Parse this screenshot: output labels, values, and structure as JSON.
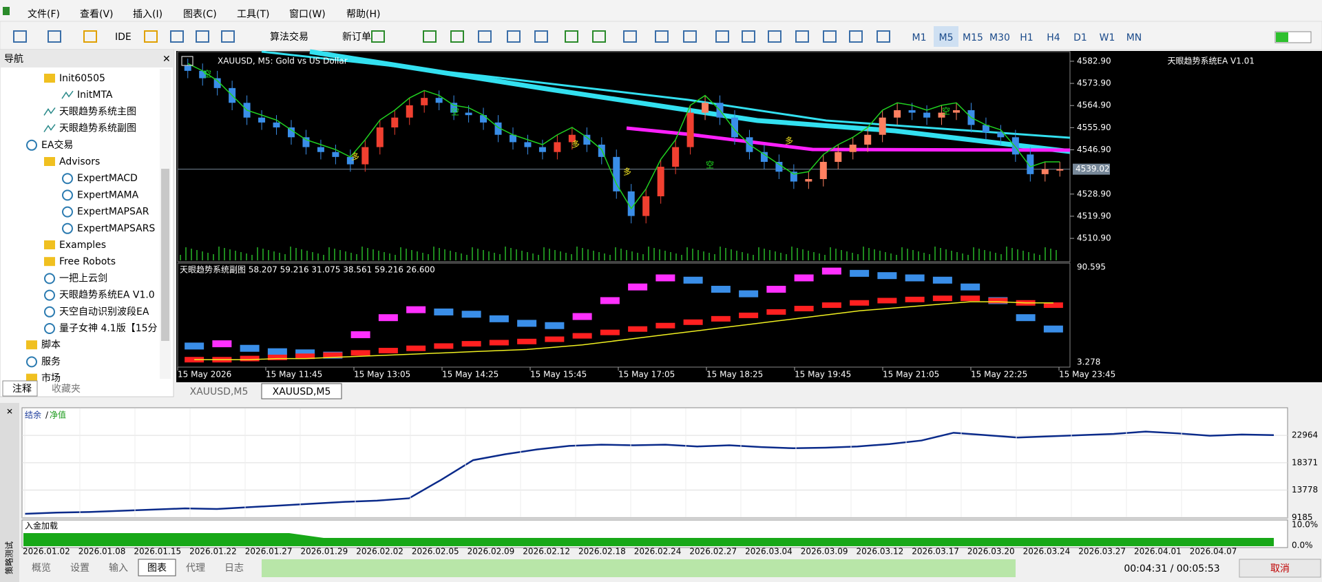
{
  "menu": [
    "文件(F)",
    "查看(V)",
    "插入(I)",
    "图表(C)",
    "工具(T)",
    "窗口(W)",
    "帮助(H)"
  ],
  "toolbar": [
    "IDE",
    "算法交易",
    "新订单"
  ],
  "timeframes": [
    "M1",
    "M5",
    "M15",
    "M30",
    "H1",
    "H4",
    "D1",
    "W1",
    "MN"
  ],
  "navigator": {
    "title": "导航",
    "items": [
      "Init60505",
      "InitMTA",
      "天眼趋势系统主图",
      "天眼趋势系统副图",
      "EA交易",
      "Advisors",
      "ExpertMACD",
      "ExpertMAMA",
      "ExpertMAPSAR",
      "ExpertMAPSARS",
      "Examples",
      "Free Robots",
      "一把上云剑",
      "天眼趋势系统EA V1.0",
      "天空自动识别波段EA",
      "量子女神 4.1版【15分",
      "脚本",
      "服务",
      "市场"
    ],
    "tabs": [
      "注释",
      "收藏夹"
    ]
  },
  "chart": {
    "symbol_label": "XAUUSD, M5:  Gold vs US Dollar",
    "ea_label": "天眼趋势系统EA V1.01",
    "current_price": "4539.02",
    "price_range": [
      4501.4,
      4586.8
    ],
    "price_ticks": [
      {
        "value": 4582.9,
        "label": "4582.90"
      },
      {
        "value": 4573.9,
        "label": "4573.90"
      },
      {
        "value": 4564.9,
        "label": "4564.90"
      },
      {
        "value": 4555.9,
        "label": "4555.90"
      },
      {
        "value": 4546.9,
        "label": "4546.90"
      },
      {
        "value": 4528.9,
        "label": "4528.90"
      },
      {
        "value": 4519.9,
        "label": "4519.90"
      },
      {
        "value": 4510.9,
        "label": "4510.90"
      }
    ],
    "closes": [
      4579,
      4576,
      4572,
      4566,
      4560,
      4558,
      4556,
      4552,
      4548,
      4546,
      4544,
      4541,
      4548,
      4556,
      4560,
      4565,
      4568,
      4566,
      4562,
      4561,
      4558,
      4553,
      4550,
      4548,
      4546,
      4550,
      4553,
      4549,
      4544,
      4530,
      4520,
      4528,
      4540,
      4548,
      4562,
      4566,
      4560,
      4552,
      4546,
      4542,
      4538,
      4534,
      4535,
      4542,
      4546,
      4549,
      4553,
      4560,
      4563,
      4562,
      4560,
      4562,
      4563,
      4557,
      4554,
      4552,
      4545,
      4537,
      4539,
      4539
    ],
    "signals": [
      "空",
      "多",
      "空",
      "多",
      "多",
      "空",
      "多",
      "空"
    ],
    "time_labels": [
      "15 May 2026",
      "15 May 11:45",
      "15 May 13:05",
      "15 May 14:25",
      "15 May 15:45",
      "15 May 17:05",
      "15 May 18:25",
      "15 May 19:45",
      "15 May 21:05",
      "15 May 22:25",
      "15 May 23:45"
    ]
  },
  "indicator": {
    "header": "天眼趋势系统副图 58.207 59.216 31.075 38.561 59.216 26.600",
    "max": "90.595",
    "min": "3.278",
    "range": [
      3.278,
      90.595
    ],
    "fast": [
      20,
      22,
      18,
      15,
      14,
      12,
      30,
      45,
      52,
      50,
      48,
      44,
      40,
      38,
      46,
      60,
      72,
      80,
      78,
      70,
      66,
      70,
      80,
      86,
      84,
      82,
      80,
      78,
      72,
      60,
      45,
      35
    ],
    "slow": [
      8,
      8,
      9,
      10,
      11,
      12,
      14,
      16,
      18,
      20,
      22,
      23,
      24,
      26,
      29,
      32,
      35,
      38,
      41,
      44,
      47,
      50,
      53,
      56,
      58,
      60,
      61,
      62,
      62,
      60,
      58,
      56
    ],
    "signal_line": [
      8,
      8,
      8,
      9,
      9,
      10,
      11,
      12,
      13,
      14,
      15,
      16,
      17,
      19,
      21,
      24,
      27,
      30,
      33,
      36,
      39,
      42,
      45,
      48,
      51,
      53,
      55,
      57,
      59,
      59,
      58,
      58
    ]
  },
  "chart_tabs": [
    "XAUUSD,M5",
    "XAUUSD,M5"
  ],
  "tester": {
    "title": "策略测试",
    "legend": [
      "结余",
      " / ",
      "净值"
    ],
    "equity_range": [
      9100,
      27600
    ],
    "equity_ticks": [
      22964,
      18371,
      13778,
      9185
    ],
    "equity": [
      9800,
      10000,
      10100,
      10300,
      10500,
      10700,
      10600,
      10900,
      11200,
      11500,
      11800,
      12000,
      12400,
      15500,
      18800,
      19800,
      20600,
      21200,
      21400,
      21300,
      21400,
      21100,
      21300,
      21000,
      20800,
      20900,
      21100,
      21500,
      22100,
      23400,
      23000,
      22600,
      22800,
      23000,
      23200,
      23600,
      23300,
      22900,
      23100,
      23000
    ],
    "load_label": "入金加载",
    "load_ticks": [
      "10.0%",
      "0.0%"
    ],
    "dates": [
      "2026.01.02",
      "2026.01.08",
      "2026.01.15",
      "2026.01.22",
      "2026.01.27",
      "2026.01.29",
      "2026.02.02",
      "2026.02.05",
      "2026.02.09",
      "2026.02.12",
      "2026.02.18",
      "2026.02.24",
      "2026.02.27",
      "2026.03.04",
      "2026.03.09",
      "2026.03.12",
      "2026.03.17",
      "2026.03.20",
      "2026.03.24",
      "2026.03.27",
      "2026.04.01",
      "2026.04.07"
    ],
    "tabs": [
      "概览",
      "设置",
      "输入",
      "图表",
      "代理",
      "日志"
    ],
    "elapsed": "00:04:31 / 00:05:53",
    "cancel": "取消"
  }
}
